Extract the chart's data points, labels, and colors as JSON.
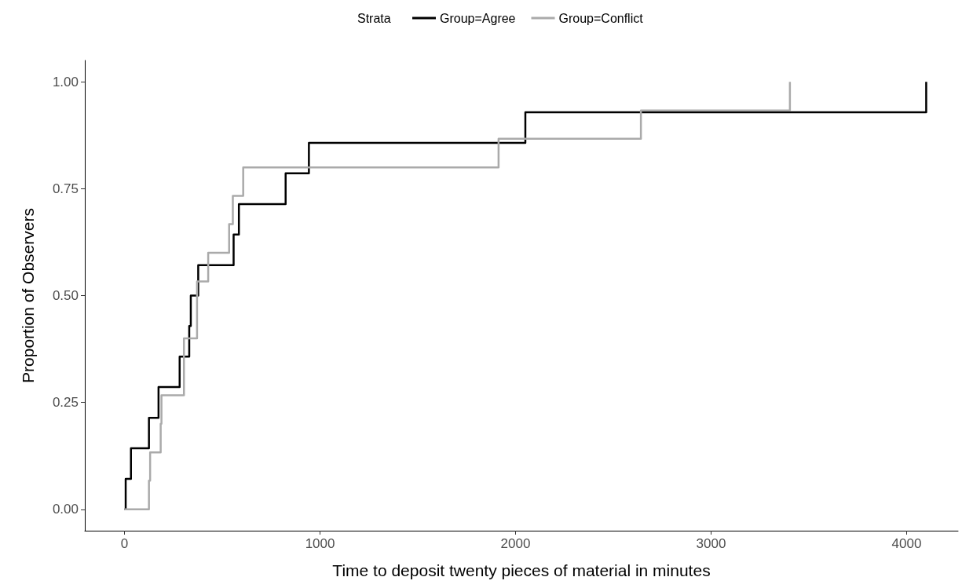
{
  "chart_data": {
    "type": "step",
    "xlabel": "Time to deposit twenty pieces of material in minutes",
    "ylabel": "Proportion of Observers",
    "legend_title": "Strata",
    "legend": "top",
    "grid": false,
    "line_style": "solid",
    "marker": "none",
    "xlim": [
      -203,
      4263
    ],
    "xticks": [
      0,
      1000,
      2000,
      3000,
      4000
    ],
    "ylim": [
      -0.05,
      1.05
    ],
    "yticks": [
      {
        "value": 0,
        "label": "0.00"
      },
      {
        "value": 0.25,
        "label": "0.25"
      },
      {
        "value": 0.5,
        "label": "0.50"
      },
      {
        "value": 0.75,
        "label": "0.75"
      },
      {
        "value": 1,
        "label": "1.00"
      }
    ],
    "series": [
      {
        "name": "Group=Agree",
        "color": "#000000",
        "x": [
          0,
          6,
          33,
          125,
          174,
          282,
          331,
          339,
          377,
          558,
          585,
          824,
          943,
          2050,
          4100
        ],
        "values": [
          0,
          0.071,
          0.143,
          0.214,
          0.286,
          0.357,
          0.429,
          0.5,
          0.571,
          0.643,
          0.714,
          0.786,
          0.857,
          0.929,
          1.0
        ]
      },
      {
        "name": "Group=Conflict",
        "color": "#aaaaaa",
        "x": [
          0,
          125,
          131,
          185,
          189,
          304,
          371,
          428,
          535,
          554,
          607,
          1913,
          2641,
          3403
        ],
        "values": [
          0,
          0.067,
          0.133,
          0.2,
          0.267,
          0.4,
          0.533,
          0.6,
          0.667,
          0.733,
          0.8,
          0.867,
          0.933,
          1.0
        ]
      }
    ]
  }
}
